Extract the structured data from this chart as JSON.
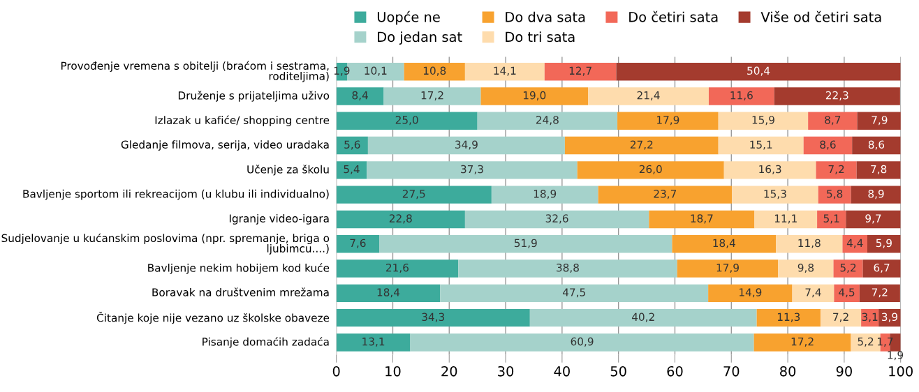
{
  "chart_data": {
    "type": "bar",
    "orientation": "horizontal",
    "stacked": true,
    "legend": "top",
    "grid": "x",
    "categories": [
      "Provođenje vremena s obitelji (braćom i sestrama, roditeljima)",
      "Druženje s prijateljima uživo",
      "Izlazak u kafiće/ shopping centre",
      "Gledanje filmova, serija, video uradaka",
      "Učenje za školu",
      "Bavljenje sportom ili rekreacijom (u klubu ili individualno)",
      "Igranje video-igara",
      "Sudjelovanje u kućanskim poslovima (npr. spremanje, briga o ljubimcu....)",
      "Bavljenje nekim hobijem kod kuće",
      "Boravak na društvenim mrežama",
      "Čitanje koje nije vezano uz školske obaveze",
      "Pisanje domaćih zadaća"
    ],
    "xlim": [
      0,
      100
    ],
    "xticks": [
      0,
      10,
      20,
      30,
      40,
      50,
      60,
      70,
      80,
      90,
      100
    ],
    "series": [
      {
        "name": "Uopće ne",
        "color": "#3dab9c",
        "values": [
          1.9,
          8.4,
          25.0,
          5.6,
          5.4,
          27.5,
          22.8,
          7.6,
          21.6,
          18.4,
          34.3,
          13.1
        ],
        "value_labels": [
          "1,9",
          "8,4",
          "25,0",
          "5,6",
          "5,4",
          "27,5",
          "22,8",
          "7,6",
          "21,6",
          "18,4",
          "34,3",
          "13,1"
        ]
      },
      {
        "name": "Do jedan sat",
        "color": "#a5d2cb",
        "values": [
          10.1,
          17.2,
          24.8,
          34.9,
          37.3,
          18.9,
          32.6,
          51.9,
          38.8,
          47.5,
          40.2,
          60.9
        ],
        "value_labels": [
          "10,1",
          "17,2",
          "24,8",
          "34,9",
          "37,3",
          "18,9",
          "32,6",
          "51,9",
          "38,8",
          "47,5",
          "40,2",
          "60,9"
        ]
      },
      {
        "name": "Do dva sata",
        "color": "#f8a22f",
        "values": [
          10.8,
          19.0,
          17.9,
          27.2,
          26.0,
          23.7,
          18.7,
          18.4,
          17.9,
          14.9,
          11.3,
          17.2
        ],
        "value_labels": [
          "10,8",
          "19,0",
          "17,9",
          "27,2",
          "26,0",
          "23,7",
          "18,7",
          "18,4",
          "17,9",
          "14,9",
          "11,3",
          "17,2"
        ]
      },
      {
        "name": "Do tri sata",
        "color": "#fedcad",
        "values": [
          14.1,
          21.4,
          15.9,
          15.1,
          16.3,
          15.3,
          11.1,
          11.8,
          9.8,
          7.4,
          7.2,
          5.2
        ],
        "value_labels": [
          "14,1",
          "21,4",
          "15,9",
          "15,1",
          "16,3",
          "15,3",
          "11,1",
          "11,8",
          "9,8",
          "7,4",
          "7,2",
          "5,2"
        ]
      },
      {
        "name": "Do četiri sata",
        "color": "#f26858",
        "values": [
          12.7,
          11.6,
          8.7,
          8.6,
          7.2,
          5.8,
          5.1,
          4.4,
          5.2,
          4.5,
          3.1,
          1.7
        ],
        "value_labels": [
          "12,7",
          "11,6",
          "8,7",
          "8,6",
          "7,2",
          "5,8",
          "5,1",
          "4,4",
          "5,2",
          "4,5",
          "3,1",
          "1,7"
        ]
      },
      {
        "name": "Više od četiri sata",
        "color": "#a43b2e",
        "values": [
          50.4,
          22.3,
          7.9,
          8.6,
          7.8,
          8.9,
          9.7,
          5.9,
          6.7,
          7.2,
          3.9,
          1.9
        ],
        "value_labels": [
          "50,4",
          "22,3",
          "7,9",
          "8,6",
          "7,8",
          "8,9",
          "9,7",
          "5,9",
          "6,7",
          "7,2",
          "3,9",
          "1,9"
        ]
      }
    ]
  }
}
